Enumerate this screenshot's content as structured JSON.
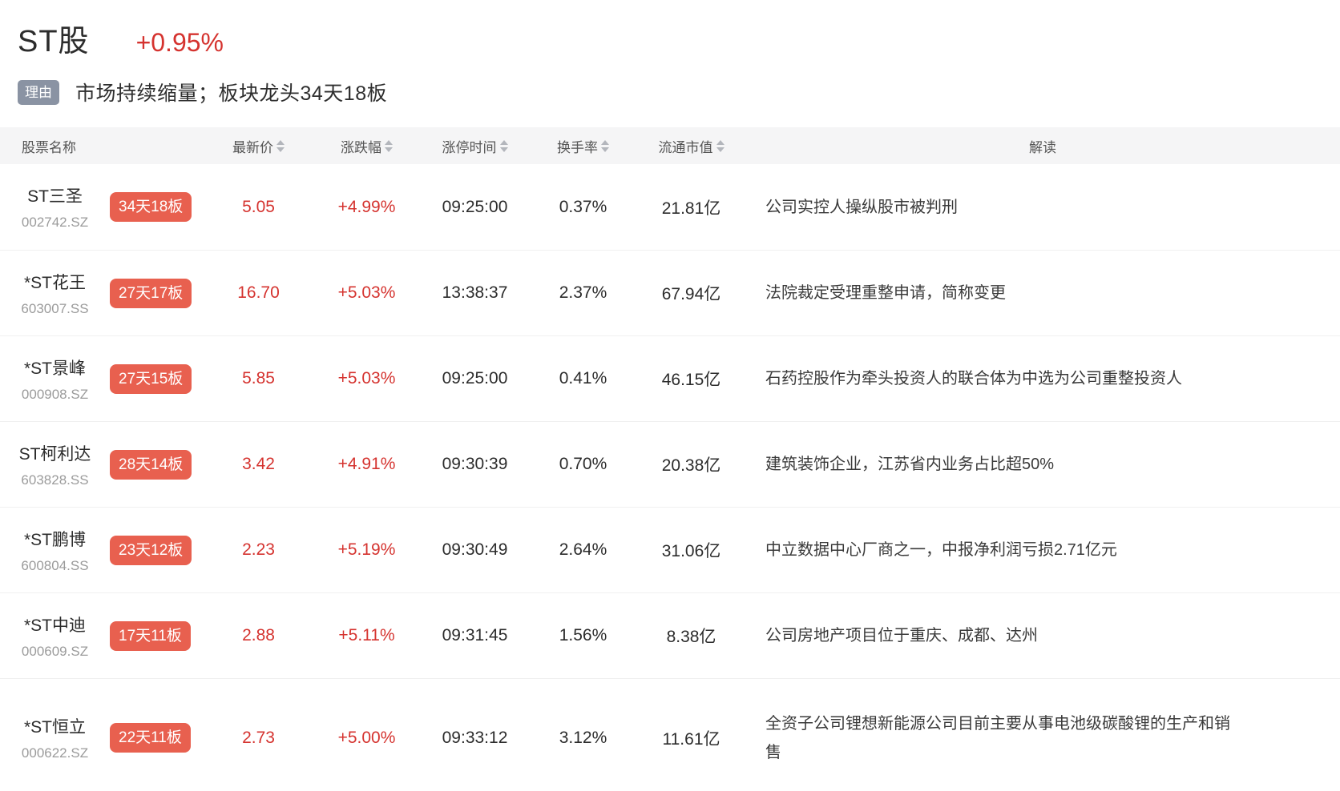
{
  "header": {
    "title": "ST股",
    "change": "+0.95%",
    "reason_label": "理由",
    "reason_text": "市场持续缩量；板块龙头34天18板"
  },
  "table": {
    "columns": [
      {
        "key": "name",
        "label": "股票名称",
        "sortable": false
      },
      {
        "key": "price",
        "label": "最新价",
        "sortable": true
      },
      {
        "key": "change",
        "label": "涨跌幅",
        "sortable": true
      },
      {
        "key": "time",
        "label": "涨停时间",
        "sortable": true
      },
      {
        "key": "turnover",
        "label": "换手率",
        "sortable": true
      },
      {
        "key": "mcap",
        "label": "流通市值",
        "sortable": true
      },
      {
        "key": "comment",
        "label": "解读",
        "sortable": false
      }
    ],
    "rows": [
      {
        "name": "ST三圣",
        "code": "002742.SZ",
        "badge": "34天18板",
        "price": "5.05",
        "change": "+4.99%",
        "time": "09:25:00",
        "turnover": "0.37%",
        "mcap": "21.81亿",
        "comment": "公司实控人操纵股市被判刑"
      },
      {
        "name": "*ST花王",
        "code": "603007.SS",
        "badge": "27天17板",
        "price": "16.70",
        "change": "+5.03%",
        "time": "13:38:37",
        "turnover": "2.37%",
        "mcap": "67.94亿",
        "comment": "法院裁定受理重整申请，简称变更"
      },
      {
        "name": "*ST景峰",
        "code": "000908.SZ",
        "badge": "27天15板",
        "price": "5.85",
        "change": "+5.03%",
        "time": "09:25:00",
        "turnover": "0.41%",
        "mcap": "46.15亿",
        "comment": "石药控股作为牵头投资人的联合体为中选为公司重整投资人"
      },
      {
        "name": "ST柯利达",
        "code": "603828.SS",
        "badge": "28天14板",
        "price": "3.42",
        "change": "+4.91%",
        "time": "09:30:39",
        "turnover": "0.70%",
        "mcap": "20.38亿",
        "comment": "建筑装饰企业，江苏省内业务占比超50%"
      },
      {
        "name": "*ST鹏博",
        "code": "600804.SS",
        "badge": "23天12板",
        "price": "2.23",
        "change": "+5.19%",
        "time": "09:30:49",
        "turnover": "2.64%",
        "mcap": "31.06亿",
        "comment": "中立数据中心厂商之一，中报净利润亏损2.71亿元"
      },
      {
        "name": "*ST中迪",
        "code": "000609.SZ",
        "badge": "17天11板",
        "price": "2.88",
        "change": "+5.11%",
        "time": "09:31:45",
        "turnover": "1.56%",
        "mcap": "8.38亿",
        "comment": "公司房地产项目位于重庆、成都、达州"
      },
      {
        "name": "*ST恒立",
        "code": "000622.SZ",
        "badge": "22天11板",
        "price": "2.73",
        "change": "+5.00%",
        "time": "09:33:12",
        "turnover": "3.12%",
        "mcap": "11.61亿",
        "comment": "全资子公司锂想新能源公司目前主要从事电池级碳酸锂的生产和销售"
      }
    ]
  },
  "colors": {
    "accent_red": "#d5332f",
    "streak_badge_bg": "#e8604f",
    "reason_badge_bg": "#8a93a3",
    "header_row_bg": "#f5f5f6"
  }
}
